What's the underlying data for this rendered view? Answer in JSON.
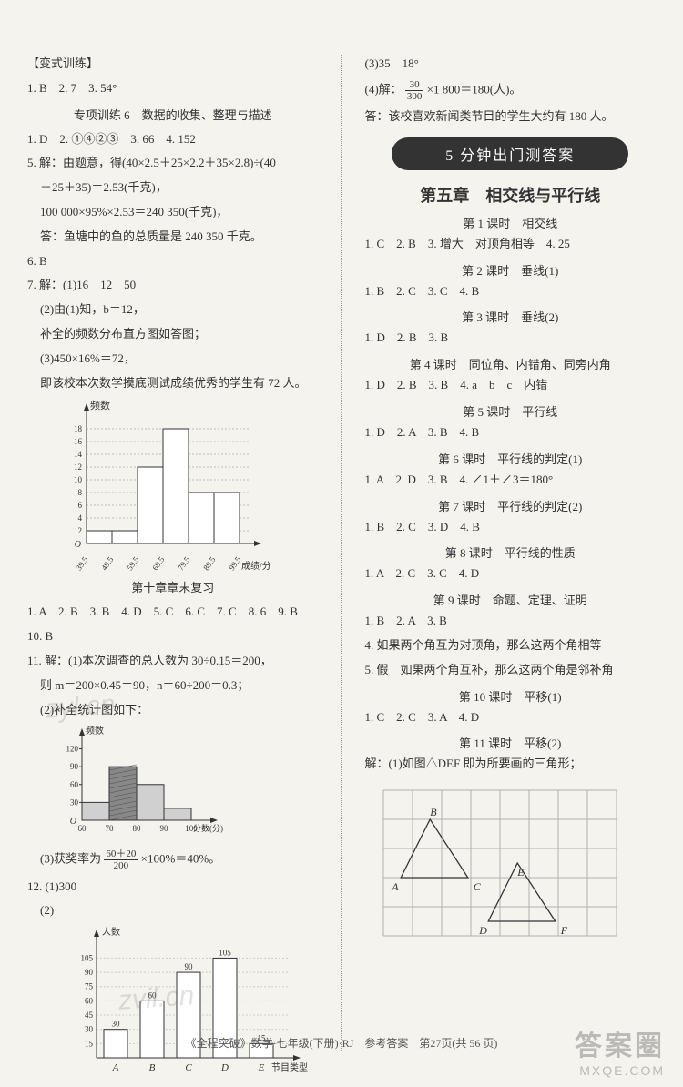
{
  "left": {
    "bianshi_title": "【变式训练】",
    "bianshi_ans": "1. B　2. 7　3. 54°",
    "special6_title": "专项训练 6　数据的收集、整理与描述",
    "special6_l1": "1. D　2. ①④②③　3. 66　4. 152",
    "special6_l2": "5. 解：由题意，得(40×2.5＋25×2.2＋35×2.8)÷(40",
    "special6_l3": "＋25＋35)＝2.53(千克)，",
    "special6_l4": "100 000×95%×2.53＝240 350(千克)，",
    "special6_l5": "答：鱼塘中的鱼的总质量是 240 350 千克。",
    "q6": "6. B",
    "q7a": "7. 解：(1)16　12　50",
    "q7b": "(2)由(1)知，b＝12，",
    "q7c": "补全的频数分布直方图如答图；",
    "q7d": "(3)450×16%＝72，",
    "q7e": "即该校本次数学摸底测试成绩优秀的学生有 72 人。",
    "histogram1": {
      "type": "histogram",
      "ylabel": "频数",
      "xlabel": "成绩/分",
      "y_ticks": [
        2,
        4,
        6,
        8,
        10,
        12,
        14,
        16,
        18
      ],
      "x_labels": [
        "39.5",
        "49.5",
        "59.5",
        "69.5",
        "79.5",
        "89.5",
        "99.5"
      ],
      "bars": [
        2,
        2,
        12,
        18,
        8,
        8
      ],
      "bar_fill": "#ffffff",
      "bar_stroke": "#333333",
      "axis_color": "#333333",
      "font_size": 9
    },
    "ch10_title": "第十章章末复习",
    "ch10_l1": "1. A　2. B　3. B　4. D　5. C　6. C　7. C　8. 6　9. B",
    "ch10_l2": "10. B",
    "q11a": "11. 解：(1)本次调查的总人数为 30÷0.15＝200，",
    "q11b": "则 m＝200×0.45＝90，n＝60÷200＝0.3；",
    "q11c": "(2)补全统计图如下：",
    "histogram2": {
      "type": "histogram",
      "ylabel": "频数",
      "xlabel": "分数(分)",
      "y_ticks": [
        30,
        60,
        90,
        120
      ],
      "x_labels": [
        "60",
        "70",
        "80",
        "90",
        "100"
      ],
      "bars": [
        30,
        90,
        60,
        20
      ],
      "hatch_bars": [
        1
      ],
      "bar_fill": "#d0d0d0",
      "bar_stroke": "#333333",
      "axis_color": "#333333",
      "font_size": 9
    },
    "q11d_pre": "(3)获奖率为",
    "q11d_num": "60＋20",
    "q11d_den": "200",
    "q11d_post": "×100%＝40%。",
    "q12a": "12. (1)300",
    "q12b": "(2)",
    "barchart": {
      "type": "bar",
      "ylabel": "人数",
      "xlabel": "节目类型",
      "y_ticks": [
        15,
        30,
        45,
        60,
        75,
        90,
        105
      ],
      "categories": [
        "A",
        "B",
        "C",
        "D",
        "E"
      ],
      "values": [
        30,
        60,
        90,
        105,
        15
      ],
      "value_labels": [
        "30",
        "60",
        "90",
        "105",
        "15"
      ],
      "bar_fill": "#ffffff",
      "bar_stroke": "#333333",
      "axis_color": "#333333",
      "font_size": 9
    }
  },
  "right": {
    "top1": "(3)35　18°",
    "top2_pre": "(4)解：",
    "top2_num": "30",
    "top2_den": "300",
    "top2_post": "×1 800＝180(人)。",
    "top3": "答：该校喜欢新闻类节目的学生大约有 180 人。",
    "banner": "5 分钟出门测答案",
    "ch5_title": "第五章　相交线与平行线",
    "l1_title": "第 1 课时　相交线",
    "l1_ans": "1. C　2. B　3. 增大　对顶角相等　4. 25",
    "l2_title": "第 2 课时　垂线(1)",
    "l2_ans": "1. B　2. C　3. C　4. B",
    "l3_title": "第 3 课时　垂线(2)",
    "l3_ans": "1. D　2. B　3. B",
    "l4_title": "第 4 课时　同位角、内错角、同旁内角",
    "l4_ans": "1. D　2. B　3. B　4. a　b　c　内错",
    "l5_title": "第 5 课时　平行线",
    "l5_ans": "1. D　2. A　3. B　4. B",
    "l6_title": "第 6 课时　平行线的判定(1)",
    "l6_ans": "1. A　2. D　3. B　4. ∠1＋∠3＝180°",
    "l7_title": "第 7 课时　平行线的判定(2)",
    "l7_ans": "1. B　2. C　3. D　4. B",
    "l8_title": "第 8 课时　平行线的性质",
    "l8_ans": "1. A　2. C　3. C　4. D",
    "l9_title": "第 9 课时　命题、定理、证明",
    "l9_ans": "1. B　2. A　3. B",
    "l9_q4": "4. 如果两个角互为对顶角，那么这两个角相等",
    "l9_q5": "5. 假　如果两个角互补，那么这两个角是邻补角",
    "l10_title": "第 10 课时　平移(1)",
    "l10_ans": "1. C　2. C　3. A　4. D",
    "l11_title": "第 11 课时　平移(2)",
    "l11_ans": "解：(1)如图△DEF 即为所要画的三角形；",
    "grid": {
      "type": "grid-figure",
      "cols": 8,
      "rows": 5,
      "cell": 32,
      "grid_color": "#b0b0b0",
      "stroke": "#333333",
      "triangles": [
        {
          "label_A": "A",
          "label_B": "B",
          "label_C": "C",
          "A": [
            0.6,
            3.0
          ],
          "B": [
            1.6,
            1.0
          ],
          "C": [
            2.9,
            3.0
          ]
        },
        {
          "label_D": "D",
          "label_E": "E",
          "label_F": "F",
          "D": [
            3.6,
            4.5
          ],
          "E": [
            4.6,
            2.5
          ],
          "F": [
            5.9,
            4.5
          ]
        }
      ],
      "font_size": 12
    }
  },
  "footer": "《全程突破》数学·七年级(下册)·RJ　参考答案　第27页(共 56 页)",
  "watermarks": {
    "w1": "zyl.cn",
    "w2": "zvil.cn",
    "brand_big": "答案圈",
    "brand_small": "MXQE.COM"
  }
}
